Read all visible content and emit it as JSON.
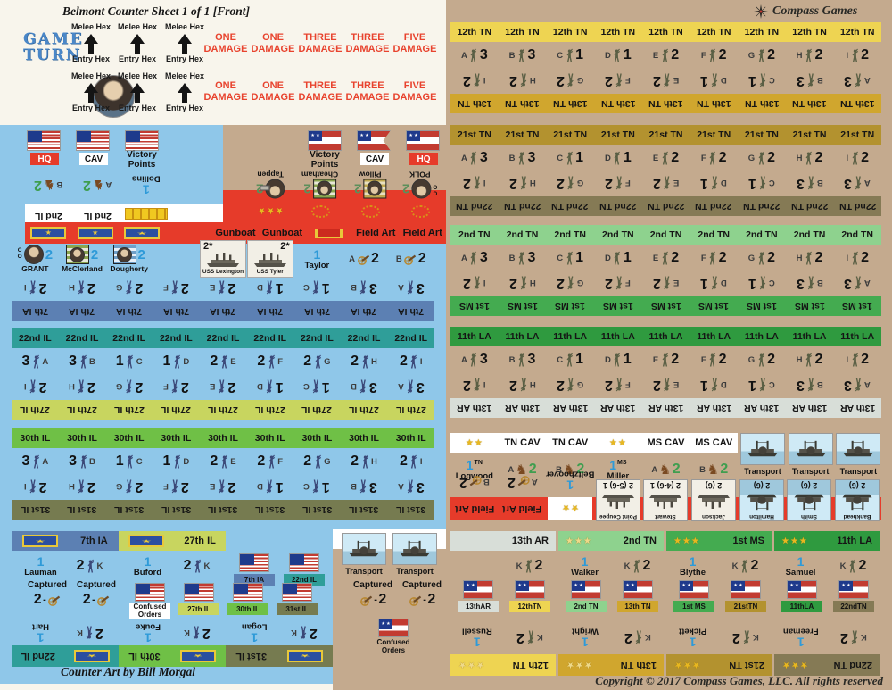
{
  "title": "Belmont Counter Sheet 1 of 1 [Front]",
  "brand": {
    "logo": "Compass Games",
    "copyright": "Copyright © 2017 Compass Games, LLC. All rights reserved",
    "counter_art": "Counter Art by Bill Morgal"
  },
  "game_turn": {
    "line1": "GAME",
    "line2": "TURN"
  },
  "melee_counter": {
    "top": "Melee Hex",
    "bottom": "Entry Hex"
  },
  "damage_counters": [
    "ONE",
    "ONE",
    "THREE",
    "THREE",
    "FIVE"
  ],
  "damage_word": "DAMAGE",
  "union_markers": [
    {
      "label": "HQ",
      "style": "red"
    },
    {
      "label": "CAV",
      "style": "white"
    },
    {
      "label": "Victory Points",
      "style": "none"
    }
  ],
  "csa_markers": [
    {
      "label": "Victory Points",
      "style": "none",
      "flag": "csa"
    },
    {
      "label": "CAV",
      "style": "white",
      "flag": "pennant"
    },
    {
      "label": "HQ",
      "style": "red",
      "flag": "csa"
    }
  ],
  "union_cavalry": {
    "band": "2nd IL",
    "units": [
      {
        "letter": "B",
        "value": 2
      },
      {
        "letter": "A",
        "value": 2
      }
    ],
    "leader": {
      "name": "Dollins",
      "value": 1
    }
  },
  "csa_command": [
    {
      "name": "Tappen",
      "value": 2,
      "insignia": "stars",
      "stars": 3,
      "portrait": "circle-bar"
    },
    {
      "name": "Cheatham",
      "value": 2,
      "insignia": "wreath",
      "portrait": "square-green"
    },
    {
      "name": "Pillow",
      "value": 2,
      "insignia": "wreath",
      "portrait": "square-gold"
    },
    {
      "name": "POLK",
      "value": 2,
      "insignia": "wreath",
      "portrait": "circle",
      "co": "C O"
    }
  ],
  "union_command": {
    "headers": [
      "star",
      "star",
      "eagle",
      "",
      "Gunboat",
      "Gunboat",
      "bar",
      "Field Art",
      "Field Art"
    ],
    "counters": [
      {
        "type": "portrait",
        "name": "GRANT",
        "value": 2,
        "co": "C O",
        "portrait": "circle"
      },
      {
        "type": "portrait",
        "name": "McClerland",
        "value": 2,
        "portrait": "square-green"
      },
      {
        "type": "portrait",
        "name": "Dougherty",
        "value": 2,
        "portrait": "square-blue"
      },
      null,
      {
        "type": "gunboat",
        "name": "USS Lexington",
        "stat": "2*",
        "statside": "left"
      },
      {
        "type": "gunboat",
        "name": "USS Tyler",
        "stat": "2*",
        "statside": "right"
      },
      {
        "type": "leader",
        "name": "Taylor",
        "value": 1
      },
      {
        "type": "art",
        "letter": "A",
        "value": 2
      },
      {
        "type": "art",
        "letter": "B",
        "value": 2
      }
    ],
    "reverse_band": "7th IA"
  },
  "company_values": [
    [
      "A",
      3
    ],
    [
      "B",
      3
    ],
    [
      "C",
      1
    ],
    [
      "D",
      1
    ],
    [
      "E",
      2
    ],
    [
      "F",
      2
    ],
    [
      "G",
      2
    ],
    [
      "H",
      2
    ],
    [
      "I",
      2
    ]
  ],
  "left_regiment_bands": [
    {
      "front": "22nd IL",
      "back": "27th IL"
    },
    {
      "front": "30th IL",
      "back": "31st IL"
    }
  ],
  "right_regiment_bands": [
    {
      "front": "12th TN",
      "back": "13th TN"
    },
    {
      "front": "21st TN",
      "back": "22nd TN"
    },
    {
      "front": "2nd TN",
      "back": "1st MS"
    },
    {
      "front": "11th LA",
      "back": "13th AR"
    }
  ],
  "csa_cavalry_band": {
    "headers": [
      "stars",
      "TN CAV",
      "TN CAV",
      "stars",
      "MS CAV",
      "MS CAV"
    ],
    "units": [
      {
        "type": "leader",
        "name": "Logwood",
        "value": 1,
        "corps": "TN"
      },
      {
        "type": "cav",
        "letter": "A",
        "value": 2
      },
      {
        "type": "cav",
        "letter": "B",
        "value": 2
      },
      {
        "type": "leader",
        "name": "Miller",
        "value": 1,
        "corps": "MS"
      },
      {
        "type": "cav",
        "letter": "A",
        "value": 2
      },
      {
        "type": "cav",
        "letter": "B",
        "value": 2
      }
    ],
    "transport_label": "Transport",
    "field_art_label": "Field Art",
    "reverse_units": [
      {
        "type": "art",
        "letter": "B",
        "value": 2
      },
      {
        "type": "art",
        "letter": "A",
        "value": 2
      },
      {
        "type": "leader",
        "name": "Beltzhoover",
        "value": 1,
        "stars": 2
      },
      {
        "type": "ship",
        "kind": "gunboat",
        "name": "Point Coupee",
        "stat": "2 (5-6) 1"
      },
      {
        "type": "ship",
        "kind": "gunboat",
        "name": "Stewart",
        "stat": "2 (4-6) 1"
      },
      {
        "type": "ship",
        "kind": "gunboat",
        "name": "Jackson",
        "stat": "2 (6)"
      },
      {
        "type": "ship",
        "kind": "transport",
        "name": "Hamilton",
        "stat": "2 (6)"
      },
      {
        "type": "ship",
        "kind": "transport",
        "name": "Smith",
        "stat": "2 (6)"
      },
      {
        "type": "ship",
        "kind": "transport",
        "name": "Bankhead",
        "stat": "2 (6)"
      }
    ]
  },
  "k_company": {
    "letter": "K",
    "value": 2
  },
  "csa_brigade_bands": [
    {
      "regiment": "13th AR",
      "stars": 0,
      "leader": null
    },
    {
      "regiment": "2nd TN",
      "stars": 3,
      "leader": "Walker"
    },
    {
      "regiment": "1st MS",
      "stars": 3,
      "leader": "Blythe"
    },
    {
      "regiment": "11th LA",
      "stars": 3,
      "leader": "Samuel"
    }
  ],
  "csa_flag_counters": [
    "13thAR",
    "12thTN",
    "2nd TN",
    "13th TN",
    "1st MS",
    "21stTN",
    "11thLA",
    "22ndTN"
  ],
  "csa_bottom_bands": [
    {
      "regiment": "12th TN",
      "stars": 3,
      "leader": "Russell"
    },
    {
      "regiment": "13th TN",
      "stars": 3,
      "leader": "Wright"
    },
    {
      "regiment": "21st TN",
      "stars": 3,
      "leader": "Pickett"
    },
    {
      "regiment": "22nd TN",
      "stars": 3,
      "leader": "Freeman"
    }
  ],
  "union_bottom": {
    "brigade_bands": [
      {
        "regiment": "7th IA",
        "leader": "Lauman"
      },
      {
        "regiment": "27th IL",
        "leader": "Buford"
      }
    ],
    "flag_counters_row1": [
      "7th IA",
      "22nd IL"
    ],
    "transport_label": "Transport",
    "captured": {
      "label": "Captured",
      "value": 2
    },
    "flag_counters_row2": [
      "Confused Orders",
      "27th IL",
      "30th IL",
      "31st IL"
    ],
    "reverse_bands": [
      {
        "regiment": "22nd IL",
        "leader": "Hart"
      },
      {
        "regiment": "30th IL",
        "leader": "Fouke"
      },
      {
        "regiment": "31st IL",
        "leader": "Logan"
      }
    ],
    "csa_confused": "Confused Orders"
  },
  "regiment_colors": {
    "7th IA": "#5c80b3",
    "22nd IL": "#2f9e99",
    "27th IL": "#c8d55f",
    "30th IL": "#6fc046",
    "31st IL": "#767b50",
    "2nd IL": "#ffffff",
    "12th TN": "#eed452",
    "13th TN": "#d0a62e",
    "21st TN": "#b3922f",
    "22nd TN": "#857a55",
    "2nd TN": "#8ed28e",
    "1st MS": "#44ab50",
    "11th LA": "#2f9a3f",
    "13th AR": "#d8ded8",
    "13thAR": "#d8ded8",
    "12thTN": "#eed452",
    "13thTN": "#d0a62e",
    "21stTN": "#b3922f",
    "22ndTN": "#857a55",
    "2ndTN": "#8ed28e",
    "1stMS": "#44ab50",
    "11thLA": "#2f9a3f",
    "Confused Orders": "#ffffff"
  },
  "palette": {
    "paper": "#f8f5ec",
    "union_blue": "#8fc7e9",
    "csa_tan": "#c4aa8e",
    "band_red": "#e63b2a",
    "leader_value": "#2e9ad8",
    "cav_value": "#3f9e4f",
    "damage_red": "#e8432e",
    "star_gold": "#e8b820",
    "union_figure": "#3b4878",
    "csa_figure": "#5a5f44"
  }
}
